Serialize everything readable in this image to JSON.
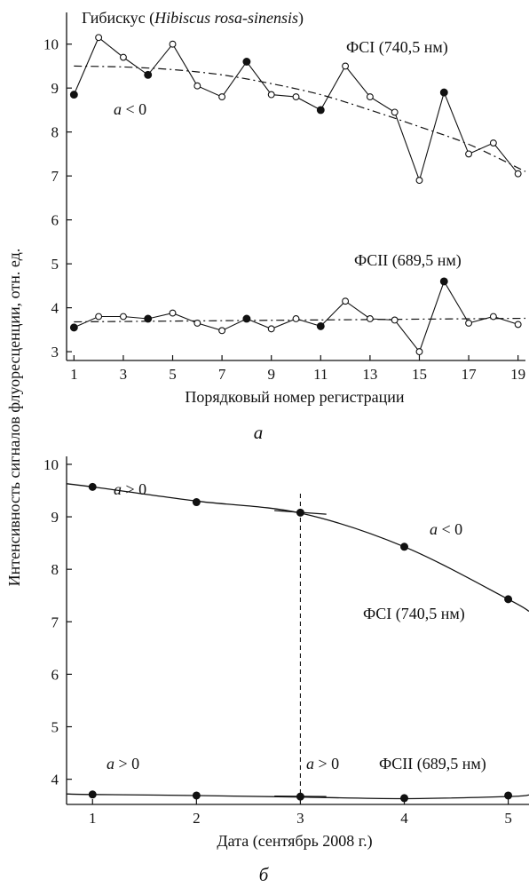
{
  "chart_data": [
    {
      "type": "line",
      "title_prefix": "Гибискус (",
      "title_italic": "Hibiscus rosa-sinensis",
      "title_suffix": ")",
      "xlabel": "Порядковый номер регистрации",
      "ylabel": "Интенсивность сигналов флуоресценции, отн. ед.",
      "panel_label": "a",
      "xlim": [
        0.7,
        19.3
      ],
      "ylim": [
        2.8,
        10.6
      ],
      "xticks": [
        1,
        3,
        5,
        7,
        9,
        11,
        13,
        15,
        17,
        19
      ],
      "yticks": [
        3,
        4,
        5,
        6,
        7,
        8,
        9,
        10
      ],
      "series": [
        {
          "name": "ФСI (740,5 нм)",
          "x": [
            1,
            2,
            3,
            4,
            5,
            6,
            7,
            8,
            9,
            10,
            11,
            12,
            13,
            14,
            15,
            16,
            17,
            18,
            19
          ],
          "values": [
            8.85,
            10.15,
            9.7,
            9.3,
            10.0,
            9.05,
            8.8,
            9.6,
            8.85,
            8.8,
            8.5,
            9.5,
            8.8,
            8.45,
            6.9,
            8.9,
            7.5,
            7.75,
            7.05
          ],
          "filled": [
            1,
            0,
            0,
            1,
            0,
            0,
            0,
            1,
            0,
            0,
            1,
            0,
            0,
            0,
            0,
            1,
            0,
            0,
            0
          ],
          "trend_x": [
            1,
            3,
            5,
            7,
            9,
            11,
            13,
            15,
            17,
            19.3
          ],
          "trend_y": [
            9.5,
            9.48,
            9.42,
            9.3,
            9.1,
            8.85,
            8.5,
            8.12,
            7.72,
            7.1
          ]
        },
        {
          "name": "ФСII (689,5 нм)",
          "x": [
            1,
            2,
            3,
            4,
            5,
            6,
            7,
            8,
            9,
            10,
            11,
            12,
            13,
            14,
            15,
            16,
            17,
            18,
            19
          ],
          "values": [
            3.55,
            3.8,
            3.8,
            3.75,
            3.88,
            3.65,
            3.48,
            3.75,
            3.52,
            3.75,
            3.58,
            4.15,
            3.75,
            3.72,
            3.0,
            4.6,
            3.65,
            3.8,
            3.62
          ],
          "filled": [
            1,
            0,
            0,
            1,
            0,
            0,
            0,
            1,
            0,
            0,
            1,
            0,
            0,
            0,
            0,
            1,
            0,
            0,
            0
          ],
          "trend_x": [
            1,
            19.3
          ],
          "trend_y": [
            3.68,
            3.76
          ]
        }
      ],
      "annotations": [
        {
          "text": "ФСI (740,5 нм)",
          "series": 0
        },
        {
          "text": "a < 0",
          "series": 0
        },
        {
          "text": "ФСII (689,5 нм)",
          "series": 1
        }
      ]
    },
    {
      "type": "line",
      "xlabel": "Дата (сентябрь 2008 г.)",
      "panel_label": "б",
      "xlim": [
        0.75,
        5.2
      ],
      "ylim": [
        3.52,
        10.05
      ],
      "xticks": [
        1,
        2,
        3,
        4,
        5
      ],
      "yticks": [
        4,
        5,
        6,
        7,
        8,
        9,
        10
      ],
      "vertical_line_x": 3,
      "series": [
        {
          "name": "ФСI (740,5 нм)",
          "x": [
            1,
            2,
            3,
            4,
            5
          ],
          "values": [
            9.57,
            9.28,
            9.08,
            8.43,
            7.43
          ],
          "curve_x": [
            0.75,
            1,
            2,
            3,
            4,
            5,
            5.2
          ],
          "curve_y": [
            9.63,
            9.57,
            9.3,
            9.07,
            8.43,
            7.43,
            7.2
          ],
          "tangent_x": [
            2.75,
            3.25
          ],
          "tangent_y": [
            9.12,
            9.05
          ]
        },
        {
          "name": "ФСII (689,5 нм)",
          "x": [
            1,
            2,
            3,
            4,
            5
          ],
          "values": [
            3.71,
            3.69,
            3.67,
            3.64,
            3.69
          ],
          "curve_x": [
            0.75,
            1,
            2,
            3,
            4,
            5,
            5.2
          ],
          "curve_y": [
            3.72,
            3.71,
            3.69,
            3.66,
            3.63,
            3.67,
            3.7
          ],
          "tangent_x": [
            2.75,
            3.25
          ],
          "tangent_y": [
            3.68,
            3.67
          ]
        }
      ],
      "annotations": [
        {
          "text": "a > 0",
          "series": 0
        },
        {
          "text": "a < 0",
          "series": 0
        },
        {
          "text": "ФСI (740,5 нм)",
          "series": 0
        },
        {
          "text": "a > 0",
          "series": 1
        },
        {
          "text": "a > 0",
          "series": 1
        },
        {
          "text": "ФСII (689,5 нм)",
          "series": 1
        }
      ]
    }
  ]
}
